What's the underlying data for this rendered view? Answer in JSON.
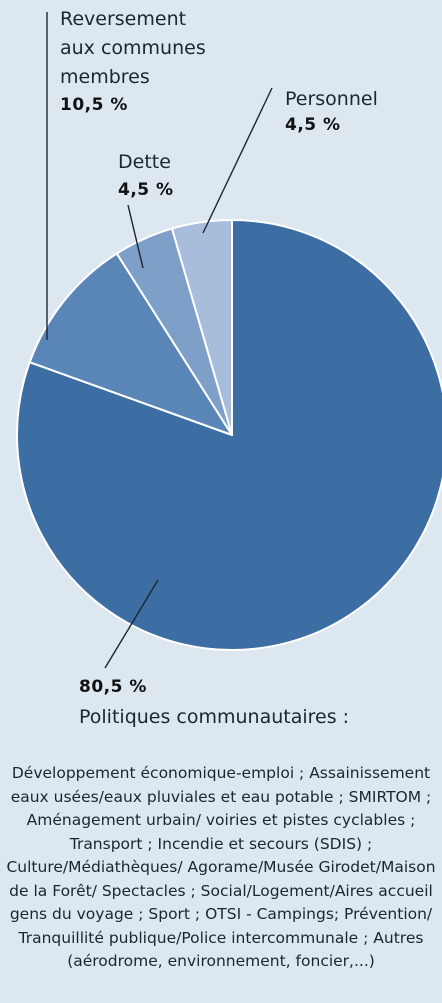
{
  "chart_data": {
    "type": "pie",
    "slices": [
      {
        "name": "Politiques communautaires",
        "value": 80.5,
        "label": "80,5 %",
        "color": "#3d6ea3"
      },
      {
        "name": "Reversement aux communes membres",
        "value": 10.5,
        "label": "10,5 %",
        "color": "#5a86b7"
      },
      {
        "name": "Dette",
        "value": 4.5,
        "label": "4,5 %",
        "color": "#7e9fc8"
      },
      {
        "name": "Personnel",
        "value": 4.5,
        "label": "4,5 %",
        "color": "#a7bddb"
      }
    ]
  },
  "labels": {
    "reversement": {
      "line1": "Reversement",
      "line2": "aux communes",
      "line3": "membres",
      "pct": "10,5 %"
    },
    "dette": {
      "name": "Dette",
      "pct": "4,5 %"
    },
    "personnel": {
      "name": "Personnel",
      "pct": "4,5 %"
    },
    "politiques": {
      "pct": "80,5 %",
      "name": "Politiques communautaires :"
    }
  },
  "description": "Développement économique-emploi ; Assainissement eaux usées/eaux pluviales et eau potable ; SMIRTOM ; Aménagement urbain/ voiries et pistes cyclables ; Transport ; Incendie et secours (SDIS) ; Culture/Médiathèques/ Agorame/Musée Girodet/Maison de la Forêt/ Spectacles ; Social/Logement/Aires accueil gens du voyage ; Sport ; OTSI - Campings; Prévention/ Tranquillité publique/Police intercommunale ; Autres (aérodrome, environnement, foncier,...)"
}
